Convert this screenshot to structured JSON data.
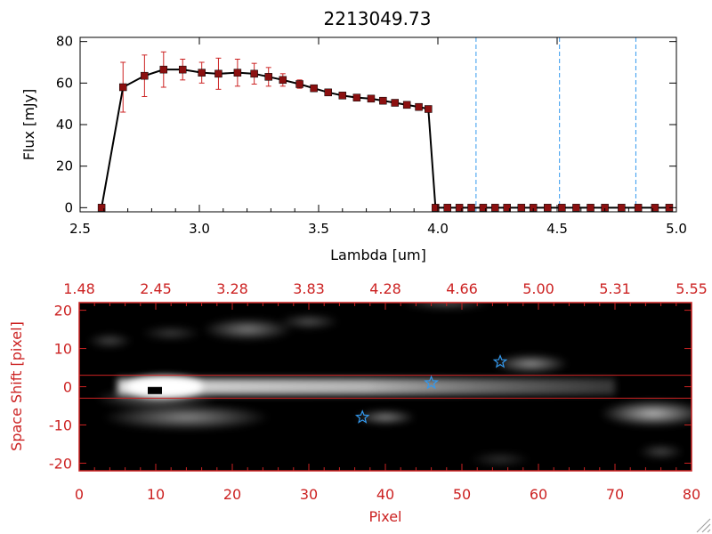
{
  "chart_data": [
    {
      "type": "line",
      "title": "2213049.73",
      "xlabel": "Lambda [um]",
      "ylabel": "Flux [mJy]",
      "xlim": [
        2.5,
        5.0
      ],
      "ylim": [
        -2,
        82
      ],
      "xticks": [
        "2.5",
        "3.0",
        "3.5",
        "4.0",
        "4.5",
        "5.0"
      ],
      "yticks": [
        "0",
        "20",
        "40",
        "60",
        "80"
      ],
      "grid": false,
      "series": [
        {
          "x": [
            2.59,
            2.68,
            2.77,
            2.85,
            2.93,
            3.01,
            3.08,
            3.16,
            3.23,
            3.29,
            3.35,
            3.42,
            3.48,
            3.54,
            3.6,
            3.66,
            3.72,
            3.77,
            3.82,
            3.87,
            3.92,
            3.96,
            3.99,
            4.04,
            4.09,
            4.14,
            4.19,
            4.24,
            4.29,
            4.35,
            4.4,
            4.46,
            4.52,
            4.58,
            4.64,
            4.7,
            4.77,
            4.84,
            4.91,
            4.97
          ],
          "y": [
            0,
            58,
            63.5,
            66.5,
            66.5,
            65,
            64.5,
            65,
            64.5,
            63,
            61.5,
            59.5,
            57.5,
            55.5,
            54,
            53,
            52.5,
            51.5,
            50.5,
            49.5,
            48.5,
            47.5,
            0,
            0,
            0,
            0,
            0,
            0,
            0,
            0,
            0,
            0,
            0,
            0,
            0,
            0,
            0,
            0,
            0,
            0
          ],
          "err": [
            0,
            12,
            10,
            8.5,
            5,
            5,
            7.5,
            6.5,
            5,
            4.5,
            3,
            2,
            1.5,
            1.5,
            1.5,
            1.5,
            1.5,
            1.5,
            1.5,
            1.5,
            1.5,
            1.5,
            0,
            0,
            0,
            0,
            0,
            0,
            0,
            0,
            0,
            0,
            0,
            0,
            0,
            0,
            0,
            0,
            0,
            0
          ]
        }
      ],
      "vlines": [
        4.16,
        4.51,
        4.83
      ],
      "colors": {
        "line": "#000000",
        "marker": "#8b1010",
        "error": "#cc2222",
        "vline": "#3399ee",
        "zero_line": "#cc2222"
      }
    },
    {
      "type": "heatmap",
      "xlabel": "Pixel",
      "ylabel": "Space Shift [pixel]",
      "xlim": [
        0,
        80
      ],
      "ylim": [
        -22,
        22
      ],
      "xticks": [
        "0",
        "10",
        "20",
        "30",
        "40",
        "50",
        "60",
        "70",
        "80"
      ],
      "yticks": [
        "-20",
        "-10",
        "0",
        "10",
        "20"
      ],
      "top_ticks": [
        "1.48",
        "2.45",
        "3.28",
        "3.83",
        "4.28",
        "4.66",
        "5.00",
        "5.31",
        "5.55"
      ],
      "hlines": [
        3,
        -3
      ],
      "trace": {
        "x_start": 5,
        "x_end": 70,
        "peak_x": 10,
        "y": 0
      },
      "blobs": [
        {
          "x": 14,
          "y": -8,
          "rx": 11,
          "ry": 3.5,
          "level": 0.55
        },
        {
          "x": 10,
          "y": -3,
          "rx": 8,
          "ry": 3,
          "level": 0.45
        },
        {
          "x": 22,
          "y": 15,
          "rx": 6,
          "ry": 3,
          "level": 0.5
        },
        {
          "x": 30,
          "y": 17,
          "rx": 4,
          "ry": 2,
          "level": 0.35
        },
        {
          "x": 12,
          "y": 14,
          "rx": 4,
          "ry": 2,
          "level": 0.25
        },
        {
          "x": 40,
          "y": -8,
          "rx": 4,
          "ry": 2,
          "level": 0.55
        },
        {
          "x": 59,
          "y": 6,
          "rx": 5,
          "ry": 2.5,
          "level": 0.6
        },
        {
          "x": 75,
          "y": -7,
          "rx": 7,
          "ry": 3.5,
          "level": 0.75
        },
        {
          "x": 76,
          "y": -17,
          "rx": 3,
          "ry": 2,
          "level": 0.3
        },
        {
          "x": 4,
          "y": 12,
          "rx": 3,
          "ry": 2,
          "level": 0.3
        },
        {
          "x": 48,
          "y": 22,
          "rx": 6,
          "ry": 2,
          "level": 0.35
        },
        {
          "x": 55,
          "y": -19,
          "rx": 4,
          "ry": 2,
          "level": 0.2
        }
      ],
      "peak_marker": {
        "x": 10,
        "y": -1
      },
      "stars": [
        {
          "x": 37,
          "y": -8
        },
        {
          "x": 46,
          "y": 1
        },
        {
          "x": 55,
          "y": 6.5
        }
      ],
      "colors": {
        "axis": "#cc2222",
        "star": "#3399ee",
        "background": "#000000"
      }
    }
  ]
}
